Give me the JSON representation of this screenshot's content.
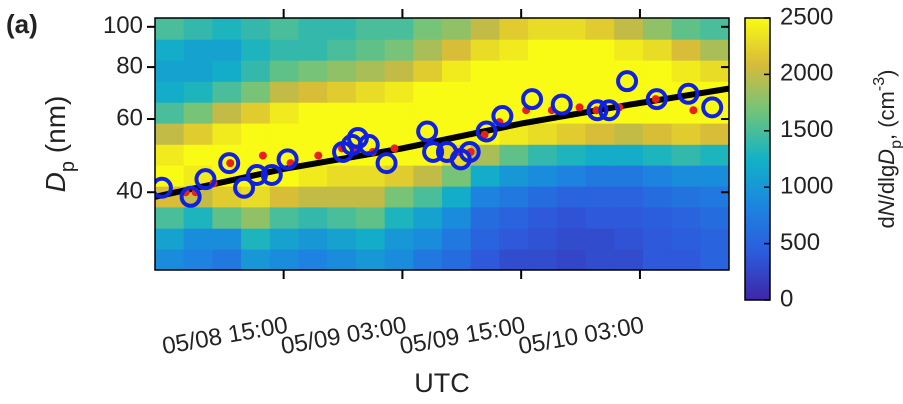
{
  "chart_data": {
    "type": "heatmap",
    "panel_label": "(a)",
    "xlabel": "UTC",
    "ylabel_parts": [
      "D",
      "p",
      " (nm)"
    ],
    "colorbar_label_parts": [
      "d",
      "N",
      "/dlg",
      "D",
      "p",
      ", (cm",
      "-3",
      ")"
    ],
    "xlim": [
      2,
      60
    ],
    "xticks": [
      {
        "value": 15,
        "label": "05/08 15:00"
      },
      {
        "value": 27,
        "label": "05/09 03:00"
      },
      {
        "value": 39,
        "label": "05/09 15:00"
      },
      {
        "value": 51,
        "label": "05/10 03:00"
      }
    ],
    "ylim": [
      26,
      105
    ],
    "log_y": true,
    "yticks": [
      40,
      60,
      80,
      100
    ],
    "clim": [
      0,
      2500
    ],
    "cticks": [
      0,
      500,
      1000,
      1500,
      2000,
      2500
    ],
    "colormap": [
      "#3e26a8",
      "#2c5bdc",
      "#1c85e0",
      "#12b2c6",
      "#6fc47c",
      "#d7ba3a",
      "#f9fb14"
    ],
    "x_bins": [
      2,
      4.9,
      7.8,
      10.7,
      13.6,
      16.5,
      19.4,
      22.3,
      25.2,
      28.1,
      31,
      33.9,
      36.8,
      39.7,
      42.6,
      45.5,
      48.4,
      51.3,
      54.2,
      57.1,
      60
    ],
    "y_bins": [
      26,
      29.2,
      32.8,
      36.9,
      41.4,
      46.5,
      52.2,
      58.7,
      65.9,
      74.0,
      83.2,
      93.4,
      105
    ],
    "z": [
      [
        900,
        800,
        700,
        1000,
        900,
        800,
        900,
        1000,
        900,
        700,
        600,
        400,
        300,
        300,
        250,
        300,
        300,
        400,
        400,
        500
      ],
      [
        1100,
        900,
        900,
        1300,
        1100,
        1000,
        1100,
        1200,
        1000,
        900,
        700,
        500,
        400,
        350,
        300,
        300,
        350,
        400,
        450,
        500
      ],
      [
        1500,
        1300,
        1600,
        1800,
        1500,
        1400,
        1500,
        1600,
        1300,
        1100,
        900,
        600,
        500,
        400,
        350,
        400,
        400,
        450,
        500,
        600
      ],
      [
        2100,
        2000,
        2200,
        2300,
        2100,
        2000,
        2000,
        2000,
        1700,
        1500,
        1200,
        800,
        700,
        600,
        500,
        500,
        500,
        600,
        650,
        700
      ],
      [
        2500,
        2400,
        2500,
        2500,
        2500,
        2400,
        2300,
        2300,
        2200,
        2000,
        1700,
        1200,
        1000,
        900,
        800,
        700,
        700,
        800,
        900,
        900
      ],
      [
        2400,
        2500,
        2500,
        2500,
        2500,
        2500,
        2500,
        2500,
        2500,
        2500,
        2300,
        1900,
        1600,
        1400,
        1300,
        1200,
        1200,
        1300,
        1400,
        1300
      ],
      [
        2000,
        2200,
        2400,
        2500,
        2500,
        2500,
        2500,
        2500,
        2500,
        2500,
        2500,
        2500,
        2400,
        2300,
        2200,
        2100,
        2000,
        2100,
        2200,
        2100
      ],
      [
        1500,
        1700,
        2000,
        2200,
        2400,
        2500,
        2500,
        2500,
        2500,
        2500,
        2500,
        2500,
        2500,
        2500,
        2500,
        2500,
        2500,
        2500,
        2500,
        2500
      ],
      [
        1200,
        1300,
        1500,
        1700,
        2000,
        2100,
        2200,
        2300,
        2400,
        2500,
        2500,
        2500,
        2500,
        2500,
        2500,
        2500,
        2500,
        2500,
        2500,
        2500
      ],
      [
        1100,
        1100,
        1200,
        1400,
        1600,
        1700,
        1800,
        1900,
        2000,
        2200,
        2400,
        2500,
        2500,
        2500,
        2500,
        2500,
        2500,
        2500,
        2400,
        2300
      ],
      [
        1200,
        1100,
        1100,
        1300,
        1400,
        1400,
        1500,
        1600,
        1700,
        1900,
        2100,
        2300,
        2400,
        2500,
        2500,
        2500,
        2400,
        2300,
        2100,
        1900
      ],
      [
        1500,
        1400,
        1300,
        1400,
        1500,
        1400,
        1400,
        1500,
        1500,
        1700,
        1800,
        2000,
        2200,
        2300,
        2300,
        2200,
        2000,
        1800,
        1600,
        1500
      ]
    ],
    "series": [
      {
        "type": "line",
        "color": "#000000",
        "x": [
          2,
          15,
          27,
          39,
          50,
          60
        ],
        "values": [
          39,
          45.5,
          51,
          58.5,
          65,
          71
        ]
      },
      {
        "type": "scatter",
        "marker": "dot",
        "color": "#e8201a",
        "x": [
          5.1,
          6.1,
          7.9,
          9.6,
          12.9,
          15.7,
          18.5,
          20.9,
          22.4,
          24,
          26.2,
          30.8,
          32.6,
          33.9,
          35.3,
          36.8,
          39.5,
          42.1,
          44.9,
          46.6,
          48.9,
          52.6,
          56.4
        ],
        "values": [
          40,
          40,
          42,
          47,
          49,
          47,
          49,
          51,
          51,
          50,
          51,
          50,
          50,
          50,
          55,
          59,
          63,
          63,
          64,
          63,
          64,
          67,
          63
        ]
      },
      {
        "type": "scatter",
        "marker": "open-circle",
        "color": "#1020e0",
        "x": [
          2.7,
          5.6,
          7.1,
          9.5,
          11,
          12.3,
          13.8,
          15.4,
          21,
          21.9,
          22.5,
          23.6,
          25.4,
          29.5,
          30.1,
          31.5,
          32.9,
          33.8,
          35.5,
          37.1,
          40.1,
          43.1,
          46.7,
          47.9,
          49.7,
          52.7,
          55.9,
          58.3
        ],
        "values": [
          41,
          39,
          43,
          47,
          41,
          44,
          44,
          48,
          50,
          52,
          54,
          52,
          47,
          56,
          50,
          50,
          48,
          50,
          56,
          61,
          67,
          65,
          63,
          63,
          74,
          67,
          69,
          64
        ]
      }
    ]
  }
}
